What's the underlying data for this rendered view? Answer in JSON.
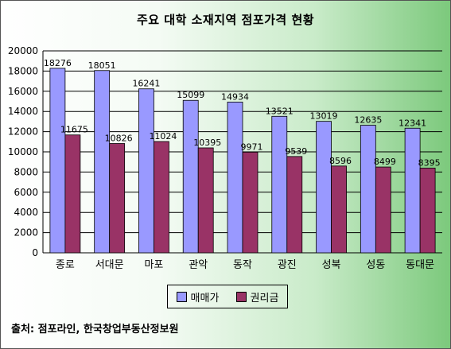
{
  "chart_data": {
    "type": "bar",
    "title": "주요 대학 소재지역 점포가격 현황",
    "categories": [
      "종로",
      "서대문",
      "마포",
      "관악",
      "동작",
      "광진",
      "성북",
      "성동",
      "동대문"
    ],
    "series": [
      {
        "name": "매매가",
        "values": [
          18276,
          18051,
          16241,
          15099,
          14934,
          13521,
          13019,
          12635,
          12341
        ],
        "color": "#9999ff"
      },
      {
        "name": "권리금",
        "values": [
          11675,
          10826,
          11024,
          10395,
          9971,
          9539,
          8596,
          8499,
          8395
        ],
        "color": "#993366"
      }
    ],
    "ylim": [
      0,
      20000
    ],
    "yticks": [
      0,
      2000,
      4000,
      6000,
      8000,
      10000,
      12000,
      14000,
      16000,
      18000,
      20000
    ],
    "grid": true,
    "legend_position": "bottom",
    "xlabel": "",
    "ylabel": ""
  },
  "source_text": "출처: 점포라인, 한국창업부동산정보원"
}
